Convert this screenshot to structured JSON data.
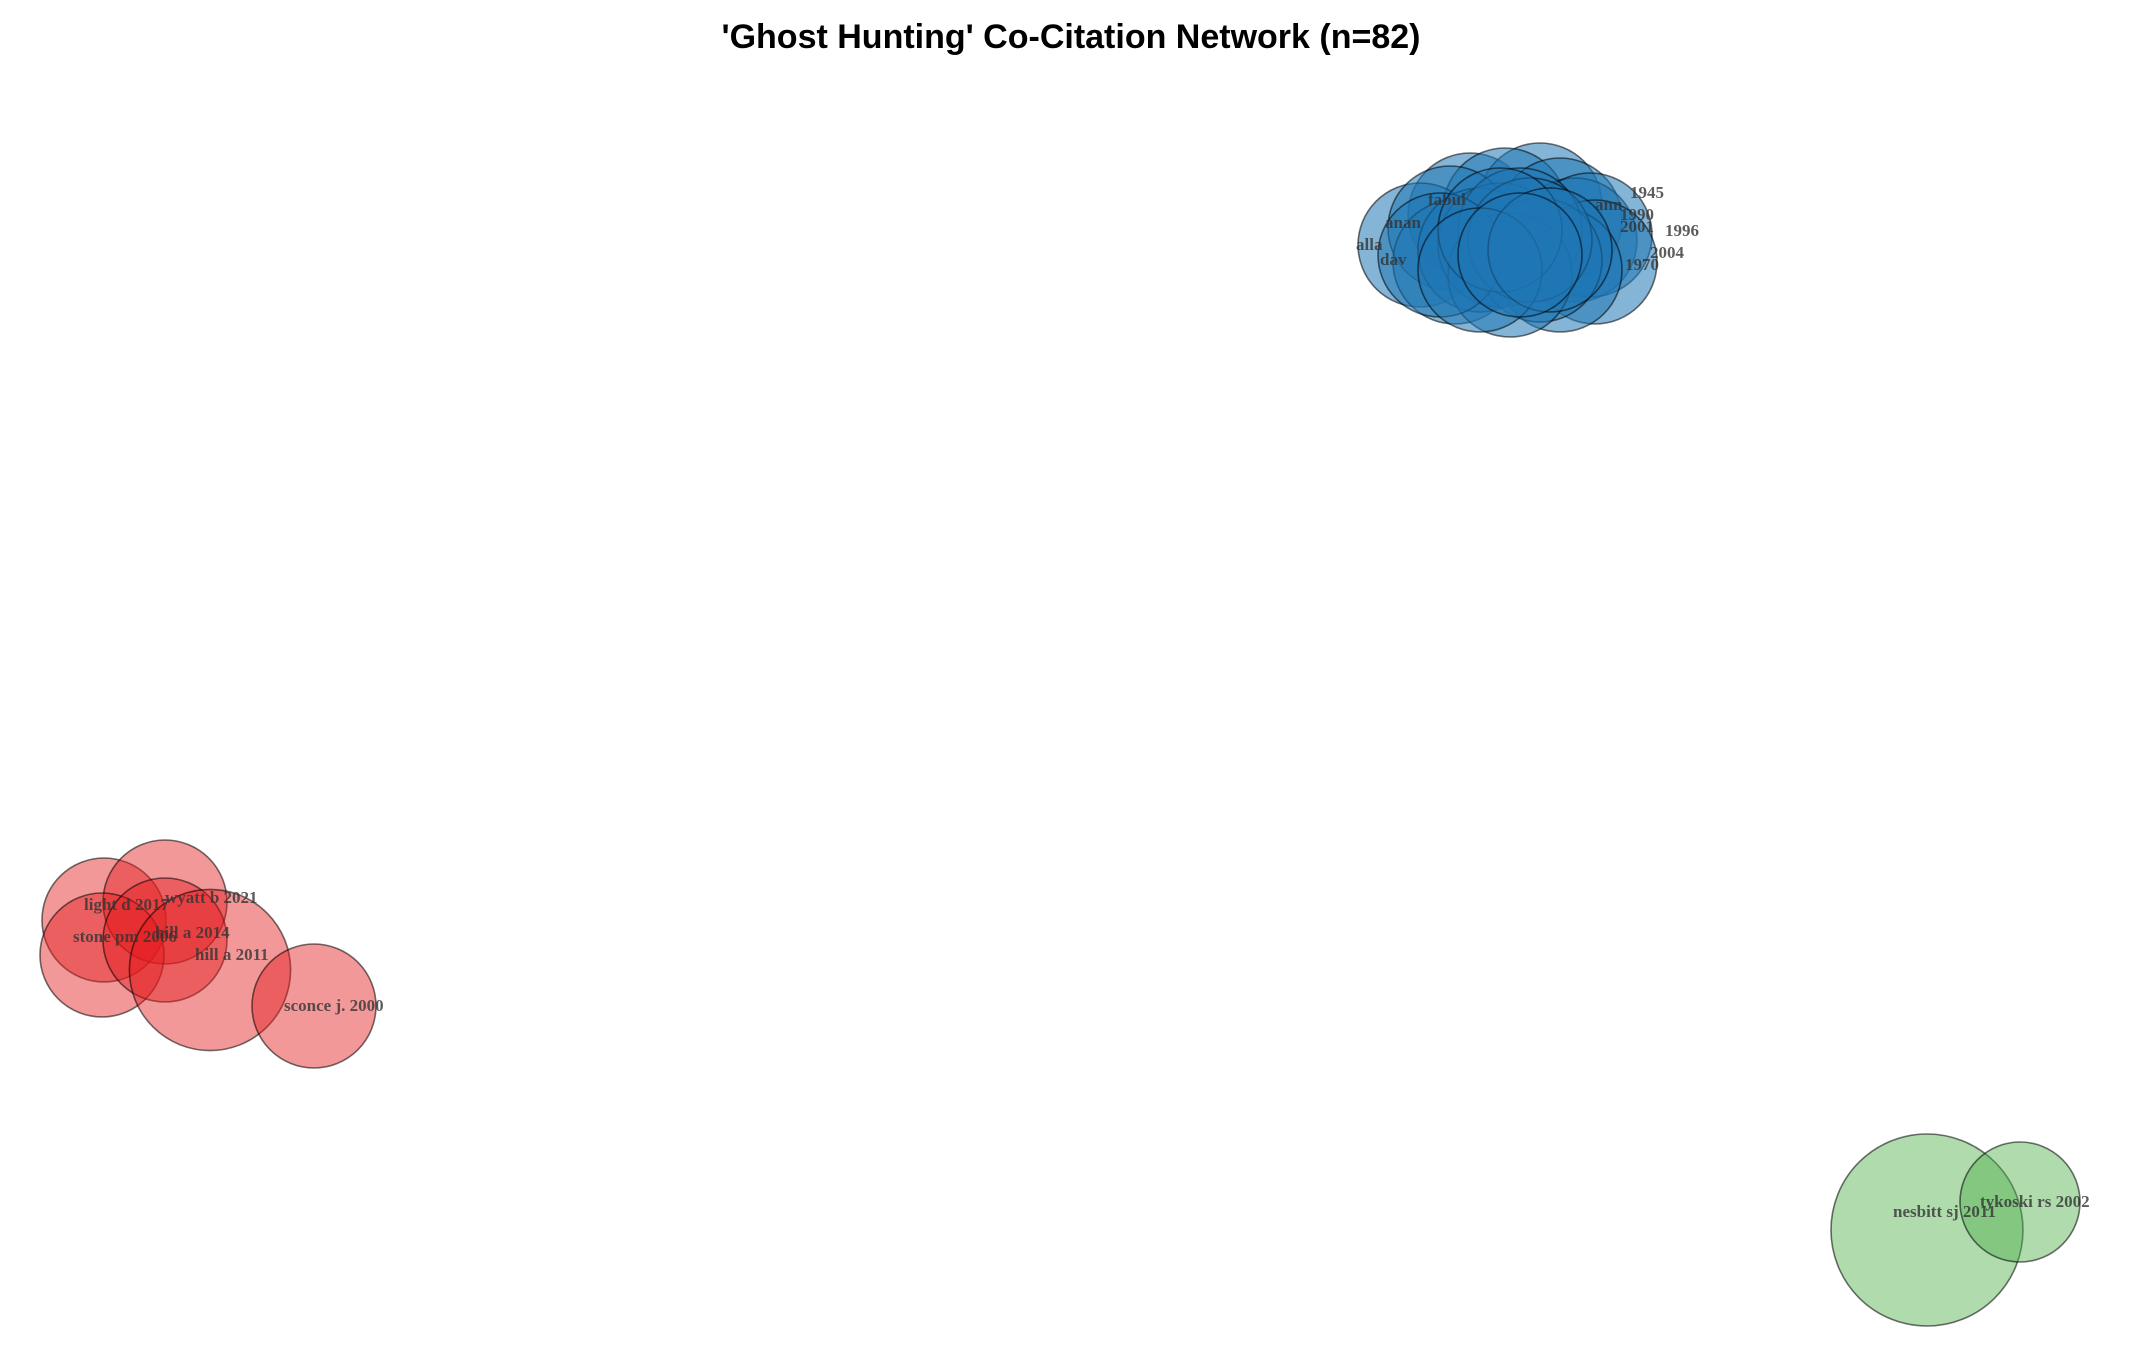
{
  "title": "'Ghost Hunting' Co-Citation Network (n=82)",
  "colors": {
    "blue": "#1f77b4",
    "red": "#e41a1c",
    "green": "#4daf4a"
  },
  "clusters": [
    {
      "id": "blue",
      "color": "#1f77b4",
      "nodes": [
        {
          "label": "fabul",
          "size": 1.0
        },
        {
          "label": "1945",
          "size": 1.0
        },
        {
          "label": "ann",
          "size": 1.0
        },
        {
          "label": "1990",
          "size": 1.0
        },
        {
          "label": "2001",
          "size": 1.0
        },
        {
          "label": "1996",
          "size": 1.0
        },
        {
          "label": "2004",
          "size": 1.0
        },
        {
          "label": "1970",
          "size": 1.0
        },
        {
          "label": "alla",
          "size": 1.0
        },
        {
          "label": "anan",
          "size": 1.0
        },
        {
          "label": "dav",
          "size": 1.0
        },
        {
          "label": "",
          "size": 1.0
        },
        {
          "label": "",
          "size": 1.0
        },
        {
          "label": "",
          "size": 1.0
        },
        {
          "label": "",
          "size": 1.0
        },
        {
          "label": "",
          "size": 1.0
        },
        {
          "label": "",
          "size": 1.0
        },
        {
          "label": "",
          "size": 1.0
        },
        {
          "label": "",
          "size": 1.0
        },
        {
          "label": "",
          "size": 1.0
        },
        {
          "label": "",
          "size": 1.0
        },
        {
          "label": "",
          "size": 1.0
        }
      ]
    },
    {
      "id": "red",
      "color": "#e41a1c",
      "nodes": [
        {
          "label": "light d 2017",
          "size": 1.0
        },
        {
          "label": "wyatt b 2021",
          "size": 1.0
        },
        {
          "label": "stone pm 2006",
          "size": 1.0
        },
        {
          "label": "hill a 2014",
          "size": 1.0
        },
        {
          "label": "hill a 2011",
          "size": 1.3
        },
        {
          "label": "sconce j. 2000",
          "size": 1.0
        }
      ]
    },
    {
      "id": "green",
      "color": "#4daf4a",
      "nodes": [
        {
          "label": "nesbitt sj 2011",
          "size": 1.6
        },
        {
          "label": "tykoski rs 2002",
          "size": 1.0
        }
      ]
    }
  ]
}
